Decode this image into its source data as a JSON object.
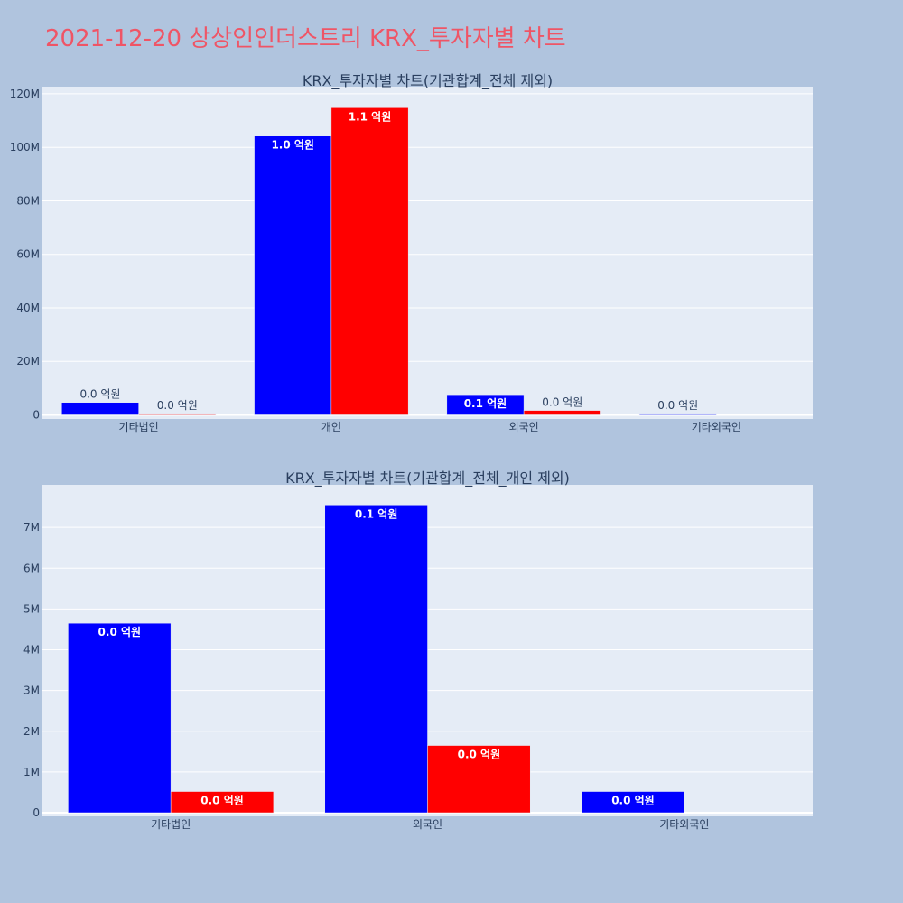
{
  "page": {
    "title": "2021-12-20 상상인인더스트리 KRX_투자자별 차트"
  },
  "colors": {
    "background": "#b0c4de",
    "plot_bg": "#e5ecf6",
    "title": "#ef5566",
    "series_a": "#0000ff",
    "series_b": "#ff0000",
    "text": "#2a3f5f"
  },
  "chart_data": [
    {
      "type": "bar",
      "title": "KRX_투자자별 차트(기관합계_전체 제외)",
      "categories": [
        "기타법인",
        "개인",
        "외국인",
        "기타외국인"
      ],
      "ylim": [
        0,
        122000000
      ],
      "yticks": [
        0,
        20000000,
        40000000,
        60000000,
        80000000,
        100000000,
        120000000
      ],
      "ytick_labels": [
        "0",
        "20M",
        "40M",
        "60M",
        "80M",
        "100M",
        "120M"
      ],
      "grid": true,
      "series": [
        {
          "color": "#0000ff",
          "values": [
            4650000,
            104200000,
            7550000,
            520000
          ],
          "labels": [
            "0.0 억원",
            "1.0 억원",
            "0.1 억원",
            "0.0 억원"
          ]
        },
        {
          "color": "#ff0000",
          "values": [
            520000,
            114800000,
            1650000,
            0
          ],
          "labels": [
            "0.0 억원",
            "1.1 억원",
            "0.0 억원",
            ""
          ]
        }
      ]
    },
    {
      "type": "bar",
      "title": "KRX_투자자별 차트(기관합계_전체_개인 제외)",
      "categories": [
        "기타법인",
        "외국인",
        "기타외국인"
      ],
      "ylim": [
        0,
        8000000
      ],
      "yticks": [
        0,
        1000000,
        2000000,
        3000000,
        4000000,
        5000000,
        6000000,
        7000000
      ],
      "ytick_labels": [
        "0",
        "1M",
        "2M",
        "3M",
        "4M",
        "5M",
        "6M",
        "7M"
      ],
      "grid": true,
      "series": [
        {
          "color": "#0000ff",
          "values": [
            4650000,
            7550000,
            520000
          ],
          "labels": [
            "0.0 억원",
            "0.1 억원",
            "0.0 억원"
          ]
        },
        {
          "color": "#ff0000",
          "values": [
            520000,
            1650000,
            0
          ],
          "labels": [
            "0.0 억원",
            "0.0 억원",
            ""
          ]
        }
      ]
    }
  ]
}
